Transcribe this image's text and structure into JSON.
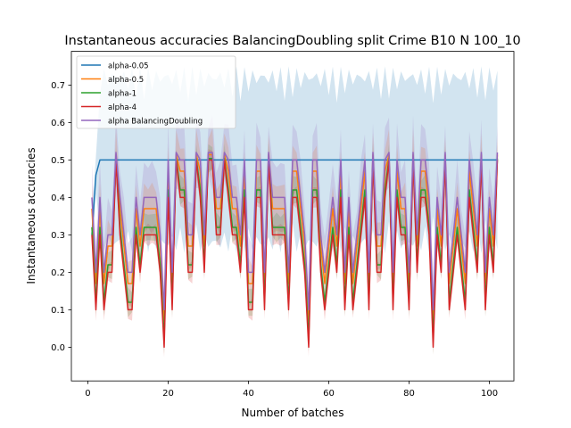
{
  "chart_data": {
    "type": "line",
    "title": "Instantaneous accuracies BalancingDoubling split Crime B10 N 100_10",
    "xlabel": "Number of batches",
    "ylabel": "Instantaneous accuracies",
    "xlim": [
      -4.1,
      106.1
    ],
    "ylim": [
      -0.09,
      0.79
    ],
    "xticks": [
      0,
      20,
      40,
      60,
      80,
      100
    ],
    "yticks": [
      0.0,
      0.1,
      0.2,
      0.3,
      0.4,
      0.5,
      0.6,
      0.7
    ],
    "xtick_labels": [
      "0",
      "20",
      "40",
      "60",
      "80",
      "100"
    ],
    "ytick_labels": [
      "0.0",
      "0.1",
      "0.2",
      "0.3",
      "0.4",
      "0.5",
      "0.6",
      "0.7"
    ],
    "grid": false,
    "legend_position": "top-left",
    "x_start": 1,
    "base": [
      0.3,
      0.1,
      0.3,
      0.1,
      0.2,
      0.2,
      0.5,
      0.3,
      0.2,
      0.1,
      0.1,
      0.3,
      0.2,
      0.3,
      0.3,
      0.3,
      0.3,
      0.2,
      0.0,
      0.4,
      0.1,
      0.5,
      0.4,
      0.4,
      0.2,
      0.2,
      0.5,
      0.4,
      0.2,
      0.5,
      0.5,
      0.3,
      0.3,
      0.5,
      0.4,
      0.3,
      0.3,
      0.2,
      0.4,
      0.1,
      0.1,
      0.4,
      0.4,
      0.1,
      0.5,
      0.3,
      0.3,
      0.3,
      0.3,
      0.1,
      0.4,
      0.4,
      0.3,
      0.2,
      0.0,
      0.4,
      0.4,
      0.2,
      0.1,
      0.2,
      0.3,
      0.2,
      0.4,
      0.1,
      0.3,
      0.1,
      0.2,
      0.3,
      0.4,
      0.1,
      0.5,
      0.2,
      0.2,
      0.4,
      0.5,
      0.1,
      0.4,
      0.3,
      0.3,
      0.1,
      0.5,
      0.2,
      0.4,
      0.4,
      0.3,
      0.0,
      0.3,
      0.2,
      0.5,
      0.1,
      0.2,
      0.3,
      0.2,
      0.1,
      0.4,
      0.3,
      0.2,
      0.5,
      0.1,
      0.3,
      0.2,
      0.5
    ],
    "series": [
      {
        "name": "alpha-0.05",
        "color": "#1f77b4",
        "offset": 0.0,
        "band": 0.25
      },
      {
        "name": "alpha-0.5",
        "color": "#ff7f0e",
        "offset": 0.07,
        "band": 0.07
      },
      {
        "name": "alpha-1",
        "color": "#2ca02c",
        "offset": 0.02,
        "band": 0.04
      },
      {
        "name": "alpha-4",
        "color": "#d62728",
        "offset": 0.0,
        "band": 0.03
      },
      {
        "name": "alpha BalancingDoubling",
        "color": "#9467bd",
        "offset": 0.1,
        "band": 0.1
      }
    ]
  }
}
